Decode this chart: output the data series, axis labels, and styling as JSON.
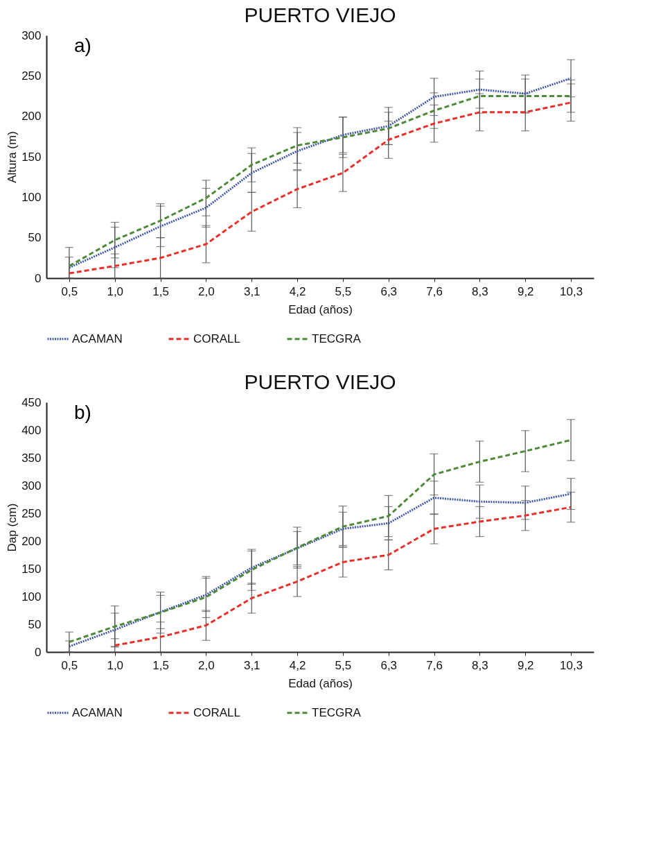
{
  "chart_data": [
    {
      "type": "line",
      "title": "PUERTO VIEJO",
      "xlabel": "Edad (años)",
      "ylabel": "Altura (m)",
      "annotations": [
        "a)"
      ],
      "categories": [
        "0,5",
        "1,0",
        "1,5",
        "2,0",
        "3,1",
        "4,2",
        "5,5",
        "6,3",
        "7,6",
        "8,3",
        "9,2",
        "10,3"
      ],
      "ylim": [
        0,
        300
      ],
      "yticks": [
        0,
        50,
        100,
        150,
        200,
        250,
        300
      ],
      "legend": "bottom",
      "series": [
        {
          "name": "ACAMAN",
          "color": "#3f56b0",
          "line_style": "dotted",
          "values": [
            13,
            38,
            64,
            87,
            130,
            157,
            177,
            188,
            224,
            233,
            228,
            247
          ],
          "errors": [
            13,
            25,
            25,
            24,
            24,
            23,
            22,
            23,
            23,
            23,
            23,
            23
          ]
        },
        {
          "name": "CORALL",
          "color": "#e8302a",
          "line_style": "dashed",
          "values": [
            6,
            15,
            25,
            42,
            82,
            110,
            130,
            171,
            191,
            205,
            205,
            217
          ],
          "errors": [
            null,
            15,
            25,
            23,
            24,
            23,
            23,
            23,
            23,
            23,
            23,
            23
          ]
        },
        {
          "name": "TECGRA",
          "color": "#4e8a3a",
          "line_style": "dashed",
          "values": [
            15,
            47,
            71,
            99,
            140,
            164,
            174,
            185,
            207,
            225,
            225,
            225
          ],
          "errors": [
            [
              0,
              38
            ],
            22,
            21,
            22,
            21,
            22,
            25,
            20,
            22,
            21,
            21,
            20
          ]
        }
      ]
    },
    {
      "type": "line",
      "title": "PUERTO VIEJO",
      "xlabel": "Edad (años)",
      "ylabel": "Dap (cm)",
      "annotations": [
        "b)"
      ],
      "categories": [
        "0,5",
        "1,0",
        "1,5",
        "2,0",
        "3,1",
        "4,2",
        "5,5",
        "6,3",
        "7,6",
        "8,3",
        "9,2",
        "10,3"
      ],
      "ylim": [
        0,
        450
      ],
      "yticks": [
        0,
        50,
        100,
        150,
        200,
        250,
        300,
        350,
        400,
        450
      ],
      "legend": "bottom",
      "series": [
        {
          "name": "ACAMAN",
          "color": "#3f56b0",
          "line_style": "dotted",
          "values": [
            10,
            40,
            72,
            103,
            152,
            187,
            222,
            232,
            278,
            271,
            269,
            285
          ],
          "errors": [
            10,
            30,
            30,
            30,
            30,
            30,
            30,
            30,
            30,
            30,
            30,
            28
          ]
        },
        {
          "name": "CORALL",
          "color": "#e8302a",
          "line_style": "dashed",
          "values": [
            null,
            12,
            27,
            48,
            97,
            127,
            162,
            175,
            222,
            235,
            246,
            261
          ],
          "errors": [
            null,
            12,
            27,
            27,
            27,
            27,
            27,
            27,
            27,
            27,
            27,
            27
          ]
        },
        {
          "name": "TECGRA",
          "color": "#4e8a3a",
          "line_style": "dashed",
          "values": [
            18,
            46,
            71,
            99,
            148,
            188,
            226,
            245,
            320,
            343,
            362,
            382
          ],
          "errors": [
            18,
            37,
            37,
            37,
            37,
            37,
            37,
            37,
            37,
            37,
            37,
            37
          ]
        }
      ]
    }
  ]
}
